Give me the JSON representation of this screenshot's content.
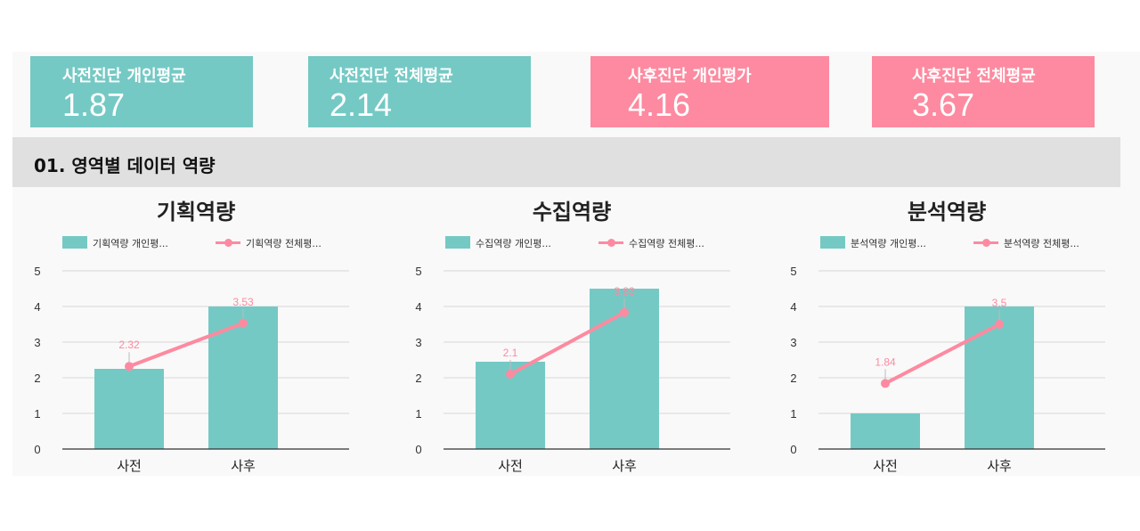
{
  "kpis": [
    {
      "label": "사전진단 개인평균",
      "value": "1.87",
      "color": "#75c9c4"
    },
    {
      "label": "사전진단 전체평균",
      "value": "2.14",
      "color": "#75c9c4"
    },
    {
      "label": "사후진단 개인평가",
      "value": "4.16",
      "color": "#fd8aa0"
    },
    {
      "label": "사후진단 전체평균",
      "value": "3.67",
      "color": "#fd8aa0"
    }
  ],
  "section": {
    "title": "01. 영역별 데이터 역량"
  },
  "colors": {
    "bar": "#75c9c4",
    "line": "#fd8aa0",
    "grid": "#d6d6d6",
    "axis": "#333333"
  },
  "chart_data": [
    {
      "type": "bar",
      "title": "기획역량",
      "categories": [
        "사전",
        "사후"
      ],
      "ylim": [
        0,
        5
      ],
      "yticks": [
        "0",
        "1",
        "2",
        "3",
        "4",
        "5"
      ],
      "legend": [
        "기획역량 개인평...",
        "기획역량 전체평..."
      ],
      "series": [
        {
          "name": "기획역량 개인평...",
          "kind": "bar",
          "values": [
            2.25,
            4.0
          ]
        },
        {
          "name": "기획역량 전체평...",
          "kind": "line",
          "values": [
            2.32,
            3.53
          ],
          "labels": [
            "2.32",
            "3.53"
          ]
        }
      ],
      "grid": true,
      "legend_position": "top-left"
    },
    {
      "type": "bar",
      "title": "수집역량",
      "categories": [
        "사전",
        "사후"
      ],
      "ylim": [
        0,
        5
      ],
      "yticks": [
        "0",
        "1",
        "2",
        "3",
        "4",
        "5"
      ],
      "legend": [
        "수집역량 개인평...",
        "수집역량 전체평..."
      ],
      "series": [
        {
          "name": "수집역량 개인평...",
          "kind": "bar",
          "values": [
            2.45,
            4.5
          ]
        },
        {
          "name": "수집역량 전체평...",
          "kind": "line",
          "values": [
            2.1,
            3.83
          ],
          "labels": [
            "2.1",
            "3.83"
          ]
        }
      ],
      "grid": true,
      "legend_position": "top-left"
    },
    {
      "type": "bar",
      "title": "분석역량",
      "categories": [
        "사전",
        "사후"
      ],
      "ylim": [
        0,
        5
      ],
      "yticks": [
        "0",
        "1",
        "2",
        "3",
        "4",
        "5"
      ],
      "legend": [
        "분석역량 개인평...",
        "분석역량 전체평..."
      ],
      "series": [
        {
          "name": "분석역량 개인평...",
          "kind": "bar",
          "values": [
            1.0,
            4.0
          ]
        },
        {
          "name": "분석역량 전체평...",
          "kind": "line",
          "values": [
            1.84,
            3.5
          ],
          "labels": [
            "1.84",
            "3.5"
          ]
        }
      ],
      "grid": true,
      "legend_position": "top-left"
    }
  ]
}
